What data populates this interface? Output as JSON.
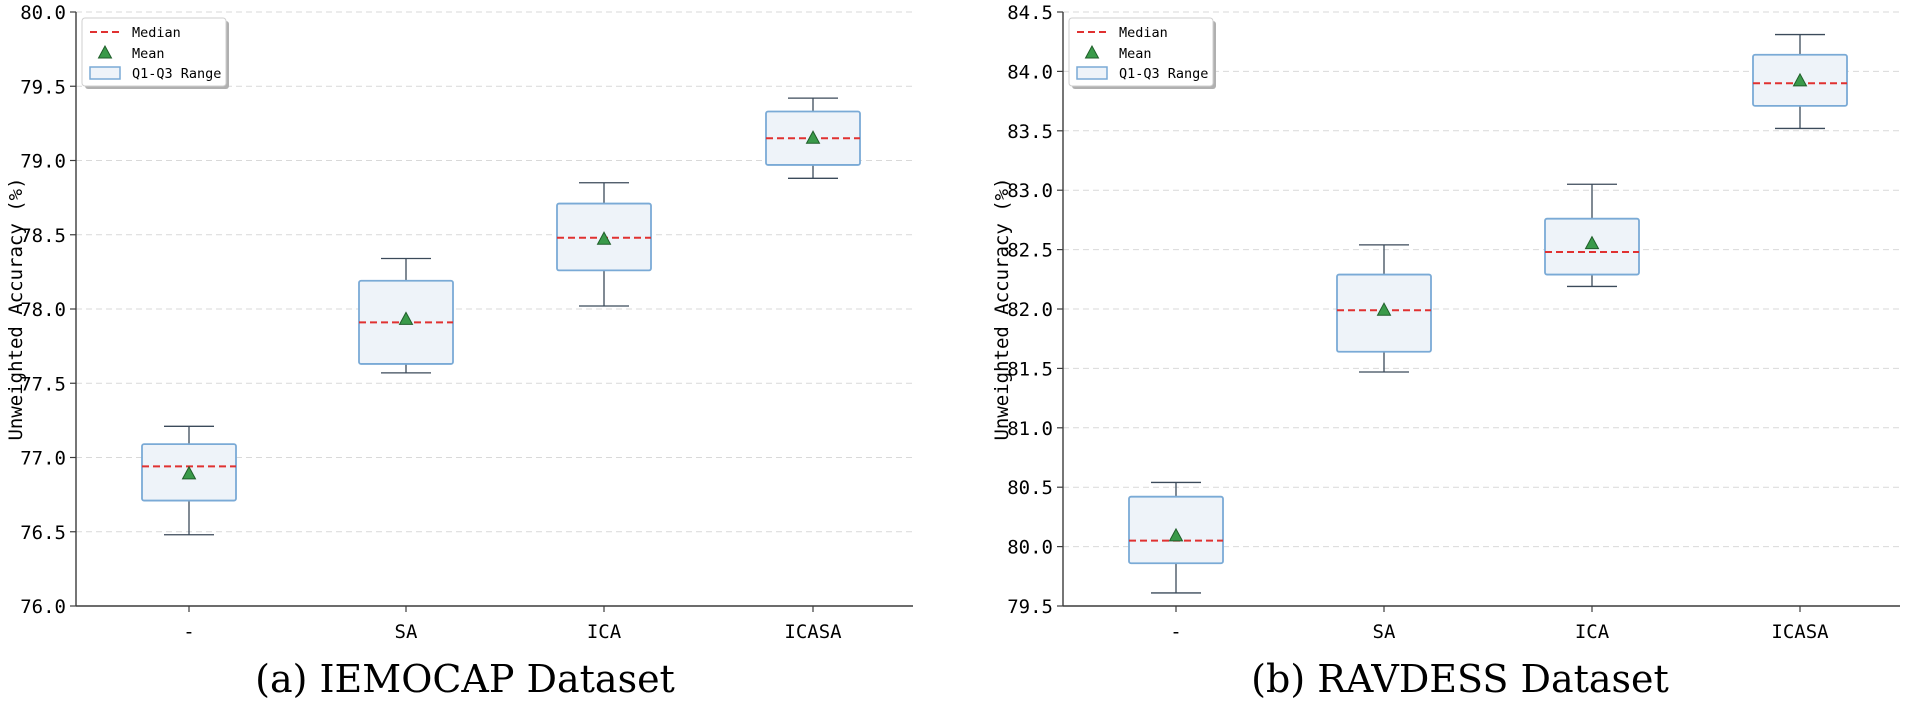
{
  "chart_data": [
    {
      "type": "box",
      "caption": "(a) IEMOCAP Dataset",
      "ylabel": "Unweighted Accuracy (%)",
      "ylim": [
        76.0,
        80.0
      ],
      "yticks": [
        "76.0",
        "76.5",
        "77.0",
        "77.5",
        "78.0",
        "78.5",
        "79.0",
        "79.5",
        "80.0"
      ],
      "categories": [
        "-",
        "SA",
        "ICA",
        "ICASA"
      ],
      "boxes": [
        {
          "whisker_low": 76.48,
          "q1": 76.71,
          "median": 76.94,
          "q3": 77.09,
          "whisker_high": 77.21,
          "mean": 76.89
        },
        {
          "whisker_low": 77.57,
          "q1": 77.63,
          "median": 77.91,
          "q3": 78.19,
          "whisker_high": 78.34,
          "mean": 77.93
        },
        {
          "whisker_low": 78.02,
          "q1": 78.26,
          "median": 78.48,
          "q3": 78.71,
          "whisker_high": 78.85,
          "mean": 78.47
        },
        {
          "whisker_low": 78.88,
          "q1": 78.97,
          "median": 79.15,
          "q3": 79.33,
          "whisker_high": 79.42,
          "mean": 79.15
        }
      ],
      "legend": {
        "position": "upper-left",
        "entries": [
          "Median",
          "Mean",
          "Q1-Q3 Range"
        ]
      },
      "grid": "y"
    },
    {
      "type": "box",
      "caption": "(b) RAVDESS Dataset",
      "ylabel": "Unweighted Accuracy (%)",
      "ylim": [
        79.5,
        84.5
      ],
      "yticks": [
        "79.5",
        "80.0",
        "80.5",
        "81.0",
        "81.5",
        "82.0",
        "82.5",
        "83.0",
        "83.5",
        "84.0",
        "84.5"
      ],
      "categories": [
        "-",
        "SA",
        "ICA",
        "ICASA"
      ],
      "boxes": [
        {
          "whisker_low": 79.61,
          "q1": 79.86,
          "median": 80.05,
          "q3": 80.42,
          "whisker_high": 80.54,
          "mean": 80.09
        },
        {
          "whisker_low": 81.47,
          "q1": 81.64,
          "median": 81.99,
          "q3": 82.29,
          "whisker_high": 82.54,
          "mean": 81.99
        },
        {
          "whisker_low": 82.19,
          "q1": 82.29,
          "median": 82.48,
          "q3": 82.76,
          "whisker_high": 83.05,
          "mean": 82.55
        },
        {
          "whisker_low": 83.52,
          "q1": 83.71,
          "median": 83.9,
          "q3": 84.14,
          "whisker_high": 84.31,
          "mean": 83.92
        }
      ],
      "legend": {
        "position": "upper-left",
        "entries": [
          "Median",
          "Mean",
          "Q1-Q3 Range"
        ]
      },
      "grid": "y"
    }
  ],
  "colors": {
    "box_fill": "#eef3f9",
    "box_edge": "#7aaad6",
    "median": "#e03131",
    "mean_fill": "#3a9a4a",
    "mean_edge": "#1f5e2a",
    "whisker": "#3b4a5a",
    "grid": "#d9d9d9",
    "axis": "#3c3c3c"
  }
}
